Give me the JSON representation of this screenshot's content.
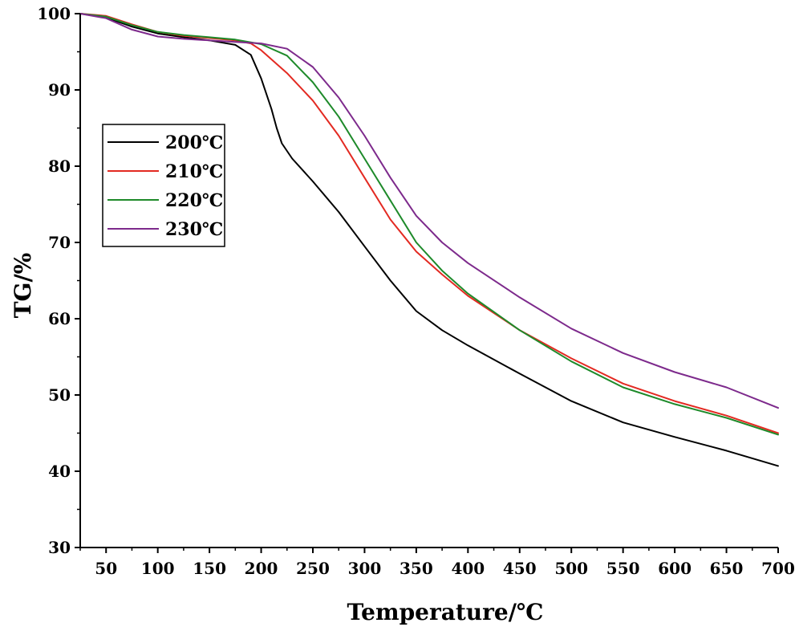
{
  "chart_data": {
    "type": "line",
    "title": "",
    "xlabel": "Temperature/℃",
    "ylabel": "TG/%",
    "xlim": [
      25,
      700
    ],
    "ylim": [
      30,
      100
    ],
    "x_ticks": [
      50,
      100,
      150,
      200,
      250,
      300,
      350,
      400,
      450,
      500,
      550,
      600,
      650,
      700
    ],
    "y_ticks": [
      30,
      40,
      50,
      60,
      70,
      80,
      90,
      100
    ],
    "grid": false,
    "legend_position": "upper-left",
    "series": [
      {
        "name": "200℃",
        "color": "#000000",
        "x": [
          25,
          50,
          75,
          100,
          125,
          150,
          175,
          190,
          200,
          210,
          215,
          220,
          230,
          250,
          275,
          300,
          325,
          350,
          375,
          400,
          450,
          500,
          550,
          600,
          650,
          700
        ],
        "y": [
          100,
          99.5,
          98.3,
          97.4,
          96.9,
          96.5,
          95.9,
          94.6,
          91.5,
          87.5,
          85.0,
          83.0,
          81.0,
          78.0,
          74.0,
          69.5,
          65.0,
          61.0,
          58.5,
          56.5,
          52.8,
          49.2,
          46.4,
          44.5,
          42.7,
          40.7
        ]
      },
      {
        "name": "210℃",
        "color": "#e32a22",
        "x": [
          25,
          50,
          75,
          100,
          125,
          150,
          175,
          190,
          200,
          225,
          250,
          275,
          300,
          325,
          350,
          375,
          400,
          450,
          500,
          550,
          600,
          650,
          700
        ],
        "y": [
          100,
          99.7,
          98.6,
          97.6,
          97.1,
          96.8,
          96.5,
          96.1,
          95.2,
          92.2,
          88.6,
          84.0,
          78.5,
          73.0,
          68.8,
          65.8,
          63.0,
          58.5,
          54.8,
          51.5,
          49.2,
          47.3,
          45.0
        ]
      },
      {
        "name": "220℃",
        "color": "#1e8a2a",
        "x": [
          25,
          50,
          75,
          100,
          125,
          150,
          175,
          200,
          225,
          250,
          275,
          300,
          325,
          350,
          375,
          400,
          450,
          500,
          550,
          600,
          650,
          700
        ],
        "y": [
          100,
          99.6,
          98.5,
          97.6,
          97.2,
          96.9,
          96.6,
          96.0,
          94.5,
          91.0,
          86.5,
          81.0,
          75.5,
          70.0,
          66.3,
          63.3,
          58.5,
          54.4,
          51.0,
          48.8,
          47.0,
          44.8
        ]
      },
      {
        "name": "230℃",
        "color": "#7d2a8c",
        "x": [
          25,
          50,
          75,
          100,
          125,
          150,
          175,
          200,
          225,
          250,
          275,
          300,
          325,
          350,
          375,
          400,
          450,
          500,
          550,
          600,
          650,
          700
        ],
        "y": [
          100,
          99.4,
          97.9,
          97.0,
          96.7,
          96.5,
          96.3,
          96.1,
          95.4,
          93.0,
          89.0,
          84.0,
          78.5,
          73.5,
          70.0,
          67.3,
          62.8,
          58.7,
          55.5,
          53.0,
          51.0,
          48.3
        ]
      }
    ]
  }
}
